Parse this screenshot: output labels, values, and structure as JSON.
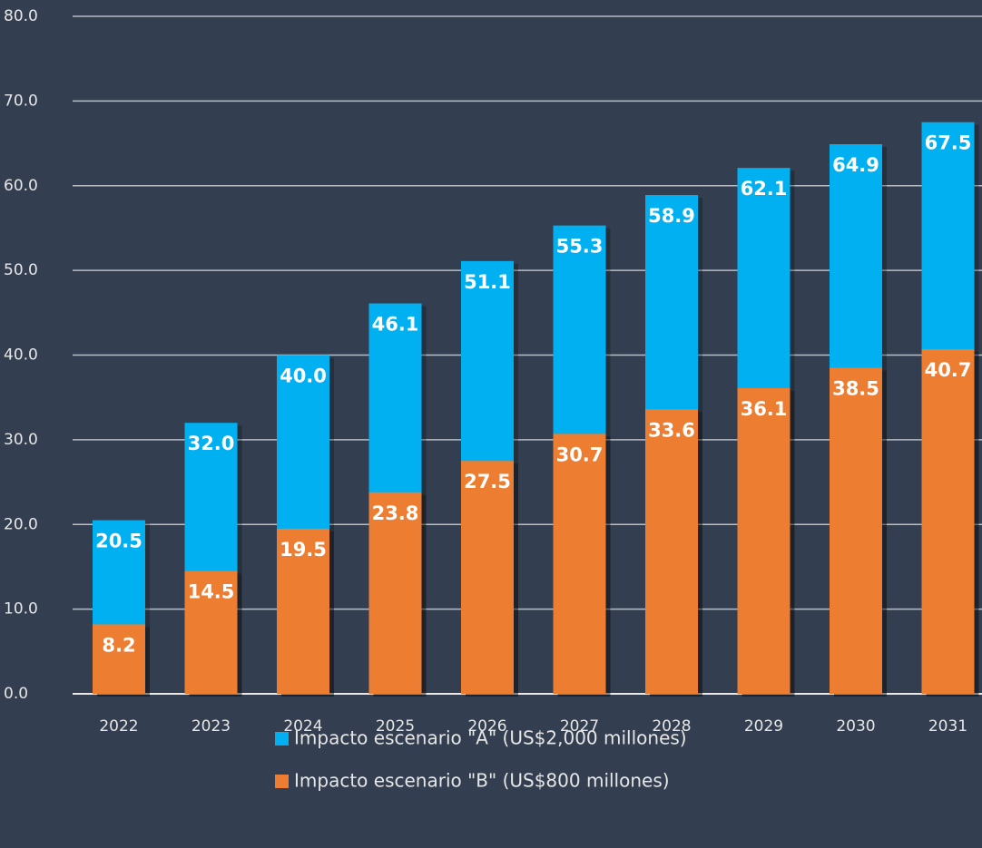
{
  "chart_data": {
    "type": "bar",
    "categories": [
      "2022",
      "2023",
      "2024",
      "2025",
      "2026",
      "2027",
      "2028",
      "2029",
      "2030",
      "2031"
    ],
    "series": [
      {
        "name": "Impacto escenario \"A\" (US$2,000 millones)",
        "color": "#00b0f0",
        "values": [
          20.5,
          32.0,
          40.0,
          46.1,
          51.1,
          55.3,
          58.9,
          62.1,
          64.9,
          67.5
        ],
        "value_labels": [
          "20.5",
          "32.0",
          "40.0",
          "46.1",
          "51.1",
          "55.3",
          "58.9",
          "62.1",
          "64.9",
          "67.5"
        ]
      },
      {
        "name": "Impacto escenario \"B\" (US$800 millones)",
        "color": "#ed7d31",
        "values": [
          8.2,
          14.5,
          19.5,
          23.8,
          27.5,
          30.7,
          33.6,
          36.1,
          38.5,
          40.7
        ],
        "value_labels": [
          "8.2",
          "14.5",
          "19.5",
          "23.8",
          "27.5",
          "30.7",
          "33.6",
          "36.1",
          "38.5",
          "40.7"
        ]
      }
    ],
    "ylim": [
      0,
      80
    ],
    "yticks": [
      {
        "value": 0,
        "label": "0.0"
      },
      {
        "value": 10,
        "label": "10.0"
      },
      {
        "value": 20,
        "label": "20.0"
      },
      {
        "value": 30,
        "label": "30.0"
      },
      {
        "value": 40,
        "label": "40.0"
      },
      {
        "value": 50,
        "label": "50.0"
      },
      {
        "value": 60,
        "label": "60.0"
      },
      {
        "value": 70,
        "label": "70.0"
      },
      {
        "value": 80,
        "label": "80.0"
      }
    ],
    "grid": true,
    "legend": "bottom"
  }
}
